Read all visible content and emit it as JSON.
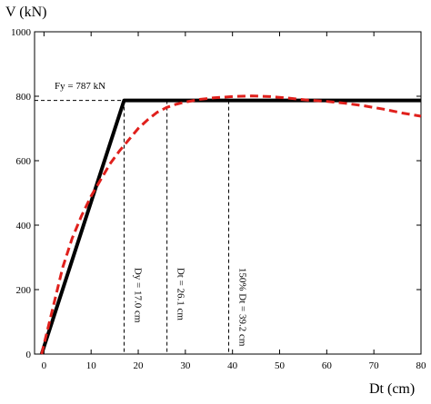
{
  "chart_data": {
    "type": "line",
    "ylabel": "V (kN)",
    "xlabel": "Dt (cm)",
    "xlim": [
      -2,
      80
    ],
    "ylim": [
      0,
      1000
    ],
    "xticks": [
      0,
      10,
      20,
      30,
      40,
      50,
      60,
      70,
      80
    ],
    "yticks": [
      0,
      200,
      400,
      600,
      800,
      1000
    ],
    "grid": false,
    "fy_label": "Fy = 787 kN",
    "fy_value": 787,
    "series": [
      {
        "style": "solid-black",
        "color": "#000000",
        "x": [
          -0.5,
          17.0,
          80
        ],
        "y": [
          0,
          787,
          787
        ]
      },
      {
        "style": "dashed-red",
        "color": "#e0201c",
        "x": [
          -0.5,
          0.5,
          2,
          4,
          6,
          8,
          10,
          12,
          14,
          16,
          18,
          20,
          22,
          24,
          26,
          28,
          30,
          33,
          36,
          40,
          44,
          48,
          52,
          56,
          60,
          64,
          68,
          72,
          76,
          80
        ],
        "y": [
          0,
          60,
          150,
          270,
          360,
          430,
          490,
          540,
          590,
          630,
          665,
          700,
          727,
          750,
          765,
          775,
          782,
          790,
          795,
          799,
          801,
          799,
          794,
          788,
          784,
          778,
          770,
          760,
          748,
          738
        ]
      }
    ],
    "markers": [
      {
        "x": 17.0,
        "label": "Dy = 17.0 cm"
      },
      {
        "x": 26.1,
        "label": "Dt = 26.1 cm"
      },
      {
        "x": 39.2,
        "label": "150% Dt = 39.2 cm"
      }
    ]
  }
}
